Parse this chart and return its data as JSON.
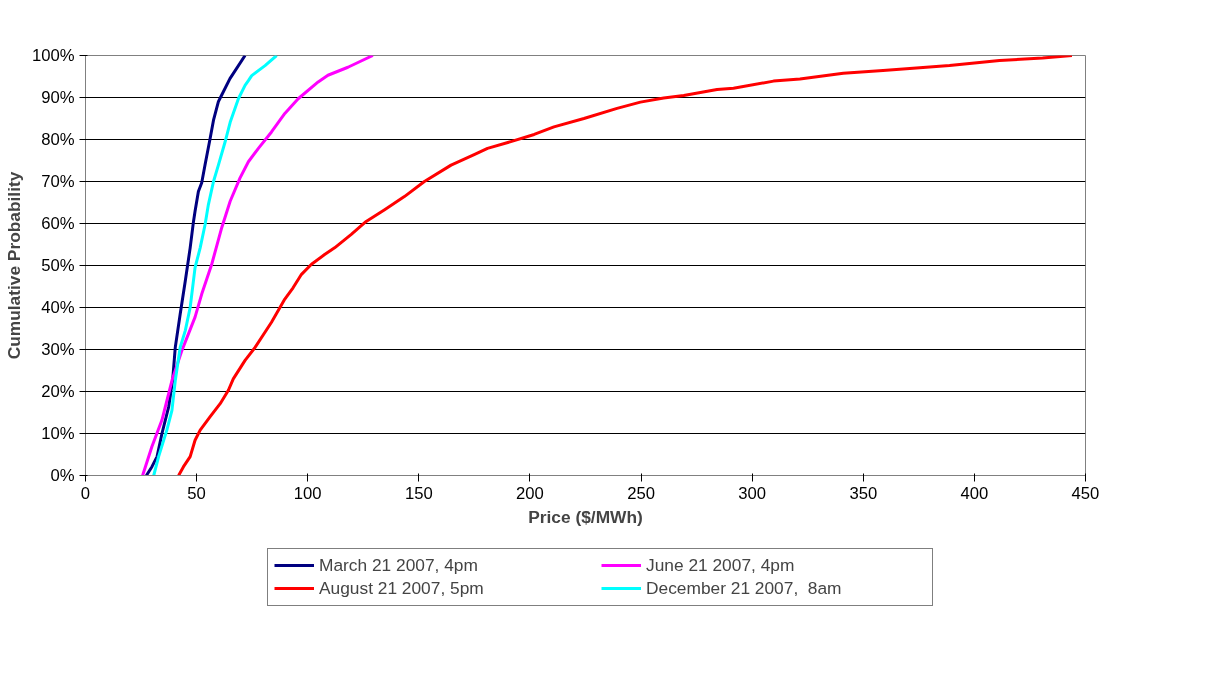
{
  "chart_data": {
    "type": "line",
    "xlabel": "Price ($/MWh)",
    "ylabel": "Cumulative Probability",
    "xlim": [
      0,
      450
    ],
    "xticks": [
      0,
      50,
      100,
      150,
      200,
      250,
      300,
      350,
      400,
      450
    ],
    "ylim": [
      0,
      100
    ],
    "yticks": [
      {
        "value": 0,
        "label": "0%"
      },
      {
        "value": 10,
        "label": "10%"
      },
      {
        "value": 20,
        "label": "20%"
      },
      {
        "value": 30,
        "label": "30%"
      },
      {
        "value": 40,
        "label": "40%"
      },
      {
        "value": 50,
        "label": "50%"
      },
      {
        "value": 60,
        "label": "60%"
      },
      {
        "value": 70,
        "label": "70%"
      },
      {
        "value": 80,
        "label": "80%"
      },
      {
        "value": 90,
        "label": "90%"
      },
      {
        "value": 100,
        "label": "100%"
      }
    ],
    "grid": "y",
    "legend": "bottom",
    "marker": "none",
    "line_style": "solid",
    "series": [
      {
        "name": "March 21 2007, 4pm",
        "color": "#000080",
        "x": [
          27.4,
          29.9,
          32.2,
          34.4,
          37.4,
          39.2,
          40.4,
          42.6,
          44.9,
          47.1,
          48.6,
          49.3,
          50.8,
          52.3,
          53.8,
          56.1,
          57.6,
          59.8,
          61.3,
          65,
          71.8
        ],
        "values": [
          0,
          2.1,
          4.5,
          10,
          16.3,
          22.6,
          30.5,
          38.4,
          46.3,
          54.2,
          60.5,
          62.9,
          67.6,
          69.7,
          74,
          80.3,
          84.6,
          89,
          90.6,
          94.5,
          100
        ]
      },
      {
        "name": "June 21 2007, 4pm",
        "color": "#ff00ff",
        "x": [
          25.7,
          29.9,
          34.4,
          38.9,
          43.4,
          49.3,
          52.3,
          56.8,
          61.3,
          65.1,
          69.5,
          73.3,
          77.8,
          83.7,
          89.7,
          95.7,
          104.7,
          109.1,
          118.1,
          129.3
        ],
        "values": [
          0,
          6.9,
          13.2,
          22.6,
          29.8,
          37.7,
          43.2,
          50.3,
          59,
          65.3,
          70.8,
          74.7,
          77.9,
          81.8,
          86.2,
          89.7,
          93.7,
          95.3,
          97.2,
          100
        ]
      },
      {
        "name": "August 21 2007, 5pm",
        "color": "#ff0000",
        "x": [
          41.9,
          44.1,
          47.1,
          49.3,
          51.6,
          56.1,
          60.6,
          64.3,
          66.5,
          71.8,
          76.3,
          83.7,
          89.7,
          93.4,
          97.2,
          101.7,
          107.6,
          112.1,
          119.6,
          126.3,
          134.6,
          143.5,
          152.5,
          164.5,
          174.9,
          180.9,
          191.4,
          201.9,
          210.8,
          224.3,
          239.2,
          249.7,
          260.2,
          269.2,
          284.2,
          291.6,
          309.6,
          321.5,
          341,
          358.9,
          373.9,
          388.8,
          411.3,
          430.7,
          443.9
        ],
        "values": [
          0,
          2.1,
          4.5,
          8.4,
          10.8,
          14,
          17.1,
          20.3,
          23,
          27.4,
          30.5,
          36.5,
          42,
          44.7,
          47.9,
          50.3,
          52.6,
          54.2,
          57.4,
          60.5,
          63.3,
          66.4,
          70,
          73.9,
          76.4,
          77.9,
          79.5,
          81.2,
          83,
          85,
          87.4,
          88.9,
          89.9,
          90.5,
          91.9,
          92.2,
          93.9,
          94.4,
          95.8,
          96.4,
          97,
          97.6,
          98.8,
          99.4,
          100
        ]
      },
      {
        "name": "December 21 2007,  8am",
        "color": "#00ffff",
        "x": [
          30.7,
          32.9,
          36.6,
          38.9,
          40.4,
          42.6,
          44.9,
          47.1,
          49.3,
          51.6,
          53.8,
          55.3,
          57.6,
          59.8,
          62.8,
          65.1,
          68.8,
          71.8,
          73.3,
          74.8,
          80.8,
          86.0
        ],
        "values": [
          0,
          4.5,
          10.8,
          15.5,
          22.6,
          30.5,
          34.5,
          40,
          49.5,
          54.2,
          59.7,
          64.5,
          70,
          73.9,
          79.4,
          84.1,
          89.7,
          92.9,
          94,
          95.2,
          97.6,
          100
        ]
      }
    ]
  }
}
